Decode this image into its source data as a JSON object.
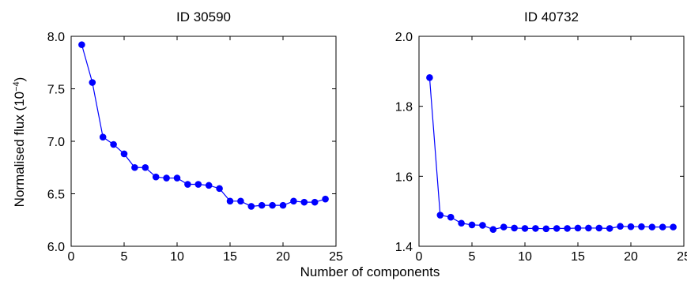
{
  "shared": {
    "xlabel": "Number of components",
    "ylabel": "Normalised flux (10",
    "ylabel_sup": "−4",
    "ylabel_close": ")"
  },
  "chart_data": [
    {
      "type": "line",
      "title": "ID 30590",
      "xlim": [
        0,
        25
      ],
      "ylim": [
        6.0,
        8.0
      ],
      "xticks": [
        "0",
        "5",
        "10",
        "15",
        "20",
        "25"
      ],
      "yticks": [
        "6.0",
        "6.5",
        "7.0",
        "7.5",
        "8.0"
      ],
      "grid": false,
      "color": "#0000ff",
      "series": [
        {
          "x": [
            1,
            2,
            3,
            4,
            5,
            6,
            7,
            8,
            9,
            10,
            11,
            12,
            13,
            14,
            15,
            16,
            17,
            18,
            19,
            20,
            21,
            22,
            23,
            24
          ],
          "y": [
            7.92,
            7.56,
            7.04,
            6.97,
            6.88,
            6.75,
            6.75,
            6.66,
            6.65,
            6.65,
            6.59,
            6.59,
            6.58,
            6.55,
            6.43,
            6.43,
            6.38,
            6.39,
            6.39,
            6.39,
            6.43,
            6.42,
            6.42,
            6.45
          ]
        }
      ]
    },
    {
      "type": "line",
      "title": "ID 40732",
      "xlim": [
        0,
        25
      ],
      "ylim": [
        1.4,
        2.0
      ],
      "xticks": [
        "0",
        "5",
        "10",
        "15",
        "20",
        "25"
      ],
      "yticks": [
        "1.4",
        "1.6",
        "1.8",
        "2.0"
      ],
      "grid": false,
      "color": "#0000ff",
      "series": [
        {
          "x": [
            1,
            2,
            3,
            4,
            5,
            6,
            7,
            8,
            9,
            10,
            11,
            12,
            13,
            14,
            15,
            16,
            17,
            18,
            19,
            20,
            21,
            22,
            23,
            24
          ],
          "y": [
            1.882,
            1.489,
            1.483,
            1.466,
            1.461,
            1.46,
            1.448,
            1.455,
            1.452,
            1.451,
            1.451,
            1.45,
            1.451,
            1.451,
            1.452,
            1.452,
            1.452,
            1.451,
            1.457,
            1.456,
            1.456,
            1.455,
            1.455,
            1.455
          ]
        }
      ]
    }
  ]
}
